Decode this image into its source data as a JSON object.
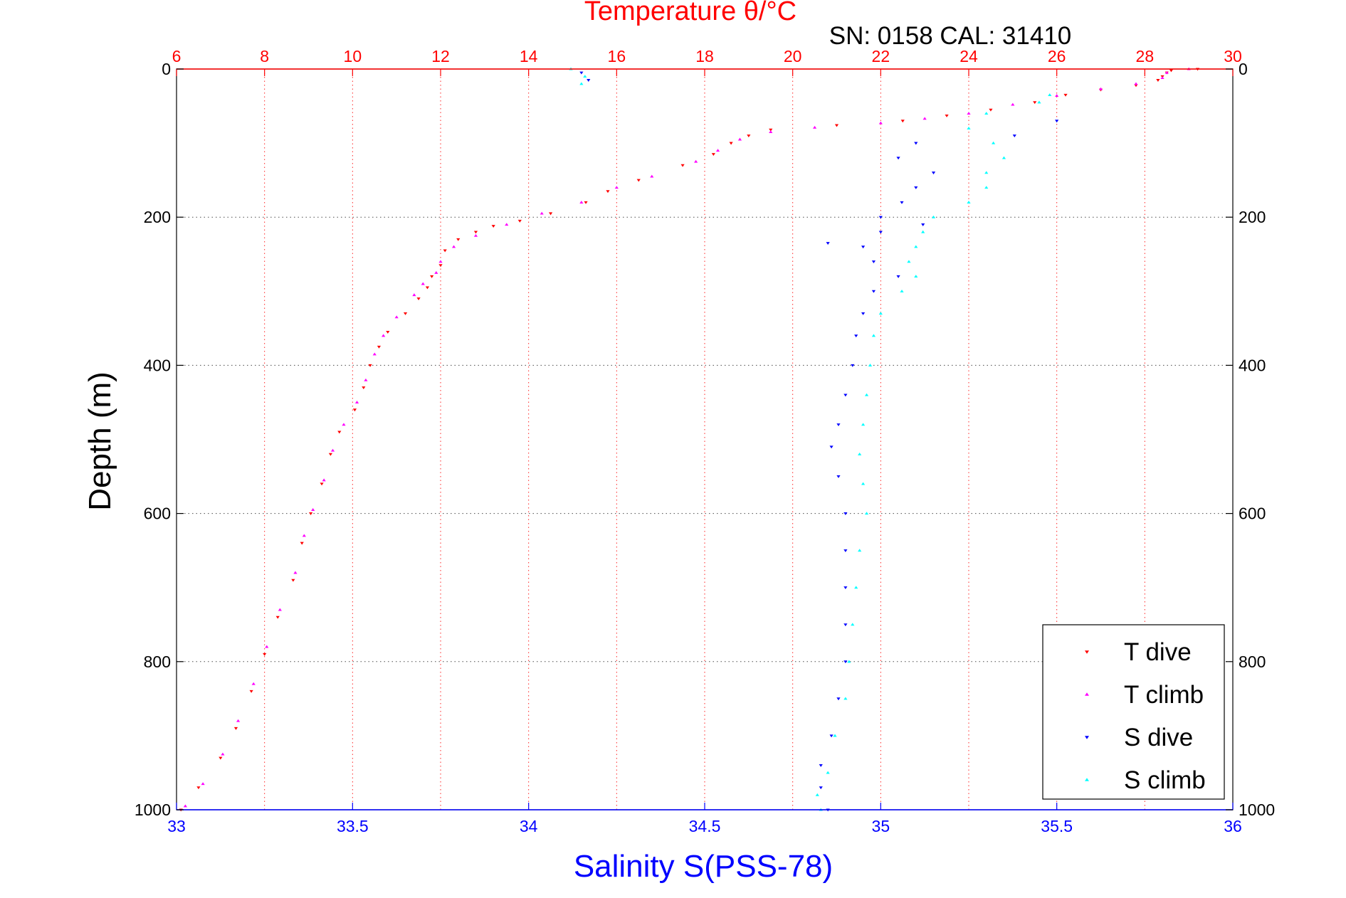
{
  "chart_data": {
    "type": "scatter",
    "title": "Temperature θ/°C",
    "subtitle": "SN: 0158  CAL: 31410",
    "xlabel": "Salinity S(PSS-78)",
    "ylabel": "Depth (m)",
    "x_top": {
      "label": "Temperature θ/°C",
      "lim": [
        6,
        30
      ],
      "ticks": [
        "6",
        "8",
        "10",
        "12",
        "14",
        "16",
        "18",
        "20",
        "22",
        "24",
        "26",
        "28",
        "30"
      ]
    },
    "x_bottom": {
      "label": "Salinity S(PSS-78)",
      "lim": [
        33,
        36
      ],
      "ticks": [
        "33",
        "33.5",
        "34",
        "34.5",
        "35",
        "35.5",
        "36"
      ]
    },
    "y": {
      "lim": [
        0,
        1000
      ],
      "reversed": true,
      "ticks": [
        "0",
        "200",
        "400",
        "600",
        "800",
        "1000"
      ]
    },
    "grid": true,
    "legend_position": "bottom-right",
    "colors": {
      "top_axis": "#ff0000",
      "bottom_axis": "#0000ff",
      "title": "#ff0000",
      "xlabel": "#0000ff"
    },
    "series": [
      {
        "name": "T dive",
        "axis": "temperature",
        "color": "#ff0000",
        "marker": "triangle-down",
        "points": [
          [
            29.2,
            0
          ],
          [
            28.6,
            2
          ],
          [
            28.5,
            5
          ],
          [
            28.4,
            10
          ],
          [
            28.3,
            15
          ],
          [
            27.8,
            22
          ],
          [
            27.0,
            28
          ],
          [
            26.2,
            35
          ],
          [
            25.5,
            45
          ],
          [
            24.5,
            55
          ],
          [
            23.5,
            63
          ],
          [
            22.5,
            70
          ],
          [
            21.0,
            76
          ],
          [
            19.5,
            82
          ],
          [
            19.0,
            90
          ],
          [
            18.6,
            100
          ],
          [
            18.2,
            115
          ],
          [
            17.5,
            130
          ],
          [
            16.5,
            150
          ],
          [
            15.8,
            165
          ],
          [
            15.3,
            180
          ],
          [
            14.5,
            195
          ],
          [
            13.8,
            205
          ],
          [
            13.2,
            212
          ],
          [
            12.8,
            220
          ],
          [
            12.4,
            230
          ],
          [
            12.1,
            245
          ],
          [
            12.0,
            265
          ],
          [
            11.8,
            280
          ],
          [
            11.7,
            295
          ],
          [
            11.5,
            310
          ],
          [
            11.2,
            330
          ],
          [
            10.8,
            355
          ],
          [
            10.6,
            375
          ],
          [
            10.4,
            400
          ],
          [
            10.25,
            430
          ],
          [
            10.05,
            460
          ],
          [
            9.7,
            490
          ],
          [
            9.5,
            520
          ],
          [
            9.3,
            560
          ],
          [
            9.05,
            600
          ],
          [
            8.85,
            640
          ],
          [
            8.65,
            690
          ],
          [
            8.3,
            740
          ],
          [
            8.0,
            790
          ],
          [
            7.7,
            840
          ],
          [
            7.35,
            890
          ],
          [
            7.0,
            930
          ],
          [
            6.5,
            970
          ],
          [
            6.1,
            1000
          ]
        ]
      },
      {
        "name": "T climb",
        "axis": "temperature",
        "color": "#ff00ff",
        "marker": "triangle-up",
        "points": [
          [
            29.0,
            0
          ],
          [
            28.5,
            5
          ],
          [
            28.4,
            12
          ],
          [
            27.8,
            20
          ],
          [
            27.0,
            27
          ],
          [
            26.0,
            36
          ],
          [
            25.0,
            48
          ],
          [
            24.0,
            60
          ],
          [
            23.0,
            67
          ],
          [
            22.0,
            73
          ],
          [
            20.5,
            79
          ],
          [
            19.5,
            85
          ],
          [
            18.8,
            95
          ],
          [
            18.3,
            110
          ],
          [
            17.8,
            125
          ],
          [
            16.8,
            145
          ],
          [
            16.0,
            160
          ],
          [
            15.2,
            180
          ],
          [
            14.3,
            195
          ],
          [
            13.5,
            210
          ],
          [
            12.8,
            225
          ],
          [
            12.3,
            240
          ],
          [
            12.0,
            260
          ],
          [
            11.9,
            275
          ],
          [
            11.6,
            290
          ],
          [
            11.4,
            305
          ],
          [
            11.0,
            335
          ],
          [
            10.7,
            360
          ],
          [
            10.5,
            385
          ],
          [
            10.3,
            420
          ],
          [
            10.1,
            450
          ],
          [
            9.8,
            480
          ],
          [
            9.55,
            515
          ],
          [
            9.35,
            555
          ],
          [
            9.1,
            595
          ],
          [
            8.9,
            630
          ],
          [
            8.7,
            680
          ],
          [
            8.35,
            730
          ],
          [
            8.05,
            780
          ],
          [
            7.75,
            830
          ],
          [
            7.4,
            880
          ],
          [
            7.05,
            925
          ],
          [
            6.6,
            965
          ],
          [
            6.2,
            995
          ]
        ]
      },
      {
        "name": "S dive",
        "axis": "salinity",
        "color": "#0000ff",
        "marker": "triangle-down",
        "points": [
          [
            34.15,
            5
          ],
          [
            34.17,
            15
          ],
          [
            35.5,
            70
          ],
          [
            35.38,
            90
          ],
          [
            35.1,
            100
          ],
          [
            35.05,
            120
          ],
          [
            35.15,
            140
          ],
          [
            35.1,
            160
          ],
          [
            35.06,
            180
          ],
          [
            35.0,
            200
          ],
          [
            35.12,
            210
          ],
          [
            35.0,
            220
          ],
          [
            34.85,
            235
          ],
          [
            34.95,
            240
          ],
          [
            34.98,
            260
          ],
          [
            35.05,
            280
          ],
          [
            34.98,
            300
          ],
          [
            34.95,
            330
          ],
          [
            34.93,
            360
          ],
          [
            34.92,
            400
          ],
          [
            34.9,
            440
          ],
          [
            34.88,
            480
          ],
          [
            34.86,
            510
          ],
          [
            34.88,
            550
          ],
          [
            34.9,
            600
          ],
          [
            34.9,
            650
          ],
          [
            34.9,
            700
          ],
          [
            34.9,
            750
          ],
          [
            34.9,
            800
          ],
          [
            34.88,
            850
          ],
          [
            34.86,
            900
          ],
          [
            34.83,
            940
          ],
          [
            34.83,
            970
          ],
          [
            34.85,
            1000
          ]
        ]
      },
      {
        "name": "S climb",
        "axis": "salinity",
        "color": "#00ffff",
        "marker": "triangle-up",
        "points": [
          [
            34.12,
            0
          ],
          [
            34.16,
            10
          ],
          [
            34.15,
            20
          ],
          [
            35.48,
            35
          ],
          [
            35.45,
            45
          ],
          [
            35.3,
            60
          ],
          [
            35.25,
            80
          ],
          [
            35.32,
            100
          ],
          [
            35.35,
            120
          ],
          [
            35.3,
            140
          ],
          [
            35.3,
            160
          ],
          [
            35.25,
            180
          ],
          [
            35.15,
            200
          ],
          [
            35.12,
            220
          ],
          [
            35.1,
            240
          ],
          [
            35.08,
            260
          ],
          [
            35.1,
            280
          ],
          [
            35.06,
            300
          ],
          [
            35.0,
            330
          ],
          [
            34.98,
            360
          ],
          [
            34.97,
            400
          ],
          [
            34.96,
            440
          ],
          [
            34.95,
            480
          ],
          [
            34.94,
            520
          ],
          [
            34.95,
            560
          ],
          [
            34.96,
            600
          ],
          [
            34.94,
            650
          ],
          [
            34.93,
            700
          ],
          [
            34.92,
            750
          ],
          [
            34.91,
            800
          ],
          [
            34.9,
            850
          ],
          [
            34.87,
            900
          ],
          [
            34.85,
            950
          ],
          [
            34.82,
            980
          ],
          [
            34.83,
            1000
          ]
        ]
      }
    ]
  }
}
